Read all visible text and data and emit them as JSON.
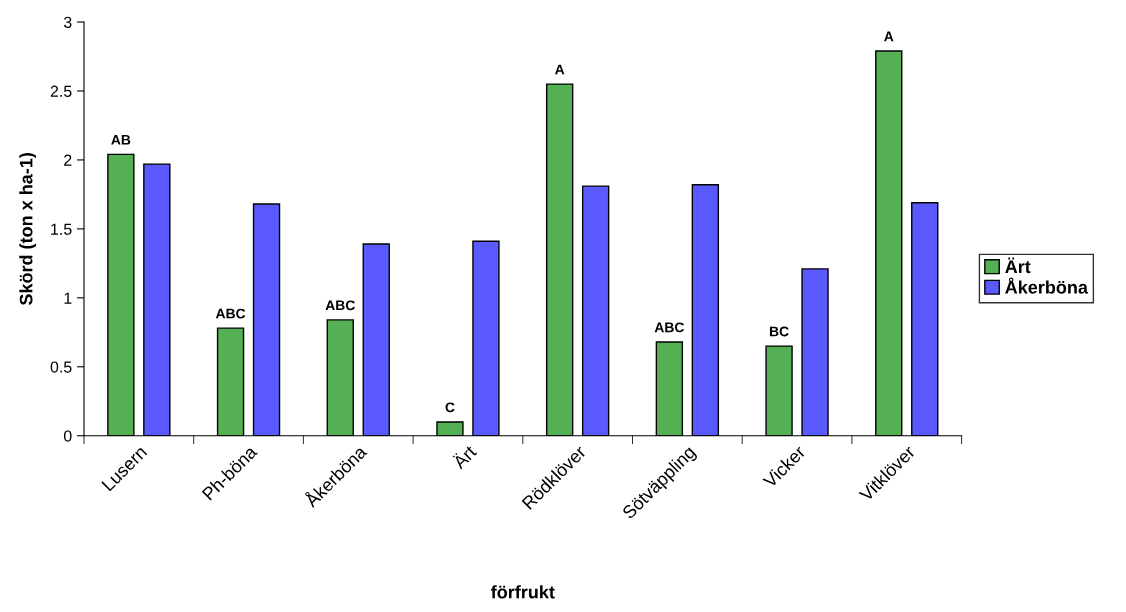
{
  "chart_data": {
    "type": "bar",
    "xlabel": "förfrukt",
    "ylabel": "Skörd (ton x ha-1)",
    "categories": [
      "Lusern",
      "Ph-böna",
      "Åkerböna",
      "Ärt",
      "Rödklöver",
      "Sötväppling",
      "Vicker",
      "Vitklöver"
    ],
    "series": [
      {
        "name": "Ärt",
        "color": "#55b055",
        "values": [
          2.04,
          0.78,
          0.84,
          0.1,
          2.55,
          0.68,
          0.65,
          2.79
        ]
      },
      {
        "name": "Åkerböna",
        "color": "#5a5aff",
        "values": [
          1.97,
          1.68,
          1.39,
          1.41,
          1.81,
          1.82,
          1.21,
          1.69
        ]
      }
    ],
    "annotations": [
      {
        "text": "AB",
        "x": "Lusern",
        "y": 2.04
      },
      {
        "text": "ABC",
        "x": "Ph-böna",
        "y": 0.78
      },
      {
        "text": "ABC",
        "x": "Åkerböna",
        "y": 0.84
      },
      {
        "text": "C",
        "x": "Ärt",
        "y": 0.1
      },
      {
        "text": "A",
        "x": "Rödklöver",
        "y": 2.55
      },
      {
        "text": "ABC",
        "x": "Sötväppling",
        "y": 0.68
      },
      {
        "text": "BC",
        "x": "Vicker",
        "y": 0.65
      },
      {
        "text": "A",
        "x": "Vitklöver",
        "y": 2.79
      }
    ],
    "ylim": [
      0,
      3
    ],
    "yticks": [
      0,
      0.5,
      1,
      1.5,
      2,
      2.5,
      3
    ],
    "grid": false,
    "legend": "right"
  }
}
